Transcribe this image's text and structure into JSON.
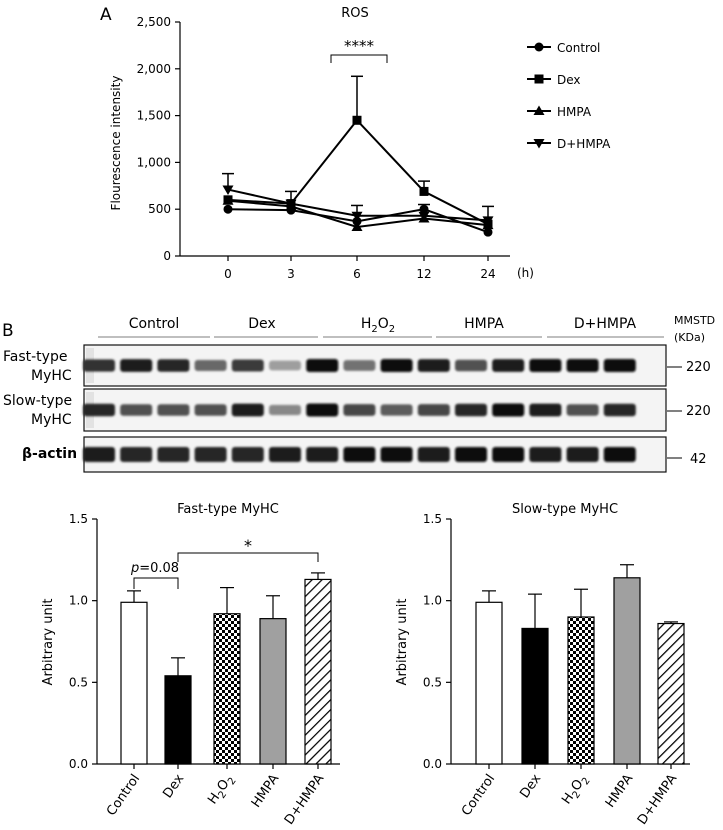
{
  "panel_a": {
    "letter": "A"
  },
  "panel_b": {
    "letter": "B"
  },
  "chart_data": [
    {
      "id": "ros",
      "type": "line",
      "title": "ROS",
      "ylabel": "Flourescence intensity",
      "xlabel": "(h)",
      "categories": [
        "0",
        "3",
        "6",
        "12",
        "24"
      ],
      "ylim": [
        0,
        2500
      ],
      "yticks": [
        0,
        500,
        1000,
        1500,
        2000,
        2500
      ],
      "ytick_labels": [
        "0",
        "500",
        "1,000",
        "1,500",
        "2,000",
        "2,500"
      ],
      "series": [
        {
          "name": "Control",
          "marker": "circle",
          "values": [
            500,
            490,
            370,
            500,
            255
          ],
          "err": [
            0,
            0,
            0,
            0,
            0
          ]
        },
        {
          "name": "Dex",
          "marker": "square",
          "values": [
            600,
            560,
            1450,
            690,
            340
          ],
          "err": [
            0,
            0,
            470,
            110,
            0
          ]
        },
        {
          "name": "HMPA",
          "marker": "triangle-up",
          "values": [
            590,
            530,
            310,
            400,
            330
          ],
          "err": [
            0,
            0,
            0,
            0,
            0
          ]
        },
        {
          "name": "D+HMPA",
          "marker": "triangle-down",
          "values": [
            710,
            560,
            430,
            430,
            380
          ],
          "err": [
            170,
            130,
            110,
            120,
            150
          ]
        }
      ],
      "annotation": {
        "label": "****",
        "from": "3",
        "to": "6"
      }
    },
    {
      "id": "fast",
      "type": "bar",
      "title": "Fast-type MyHC",
      "ylabel": "Arbitrary unit",
      "categories": [
        "Control",
        "Dex",
        "H2O2",
        "HMPA",
        "D+HMPA"
      ],
      "values": [
        0.99,
        0.54,
        0.92,
        0.89,
        1.13
      ],
      "err": [
        0.07,
        0.11,
        0.16,
        0.14,
        0.04
      ],
      "fills": [
        "white",
        "black",
        "checker",
        "gray",
        "hatch"
      ],
      "ylim": [
        0,
        1.5
      ],
      "yticks": [
        0.0,
        0.5,
        1.0,
        1.5
      ],
      "ytick_labels": [
        "0.0",
        "0.5",
        "1.0",
        "1.5"
      ],
      "annotations": [
        {
          "label_italic": "p",
          "label": "=0.08",
          "from": "Control",
          "to": "Dex"
        },
        {
          "label": "*",
          "from": "Dex",
          "to": "D+HMPA"
        }
      ]
    },
    {
      "id": "slow",
      "type": "bar",
      "title": "Slow-type MyHC",
      "ylabel": "Arbitrary unit",
      "categories": [
        "Control",
        "Dex",
        "H2O2",
        "HMPA",
        "D+HMPA"
      ],
      "values": [
        0.99,
        0.83,
        0.9,
        1.14,
        0.86
      ],
      "err": [
        0.07,
        0.21,
        0.17,
        0.08,
        0.01
      ],
      "fills": [
        "white",
        "black",
        "checker",
        "gray",
        "hatch"
      ],
      "ylim": [
        0,
        1.5
      ],
      "yticks": [
        0.0,
        0.5,
        1.0,
        1.5
      ],
      "ytick_labels": [
        "0.0",
        "0.5",
        "1.0",
        "1.5"
      ]
    }
  ],
  "blot": {
    "groups": [
      "Control",
      "Dex",
      "H2O2",
      "HMPA",
      "D+HMPA"
    ],
    "ladder_label": "MMSTD",
    "ladder_unit": "(KDa)",
    "rows": [
      {
        "label_line1": "Fast-type",
        "label_line2": "MyHC",
        "marker": "220",
        "intensity": [
          0.85,
          0.95,
          0.9,
          0.6,
          0.8,
          0.35,
          1.0,
          0.55,
          1.0,
          0.95,
          0.7,
          0.95,
          1.0,
          1.0,
          1.0
        ]
      },
      {
        "label_line1": "Slow-type",
        "label_line2": "MyHC",
        "marker": "220",
        "intensity": [
          0.9,
          0.7,
          0.7,
          0.7,
          0.95,
          0.45,
          1.0,
          0.75,
          0.65,
          0.75,
          0.9,
          1.0,
          0.95,
          0.7,
          0.9
        ]
      },
      {
        "label_line1": "β-actin",
        "label_line2": "",
        "marker": "42",
        "intensity": [
          0.95,
          0.9,
          0.9,
          0.9,
          0.9,
          0.95,
          0.95,
          1.0,
          1.0,
          0.95,
          1.0,
          1.0,
          0.95,
          0.95,
          1.0
        ]
      }
    ]
  }
}
